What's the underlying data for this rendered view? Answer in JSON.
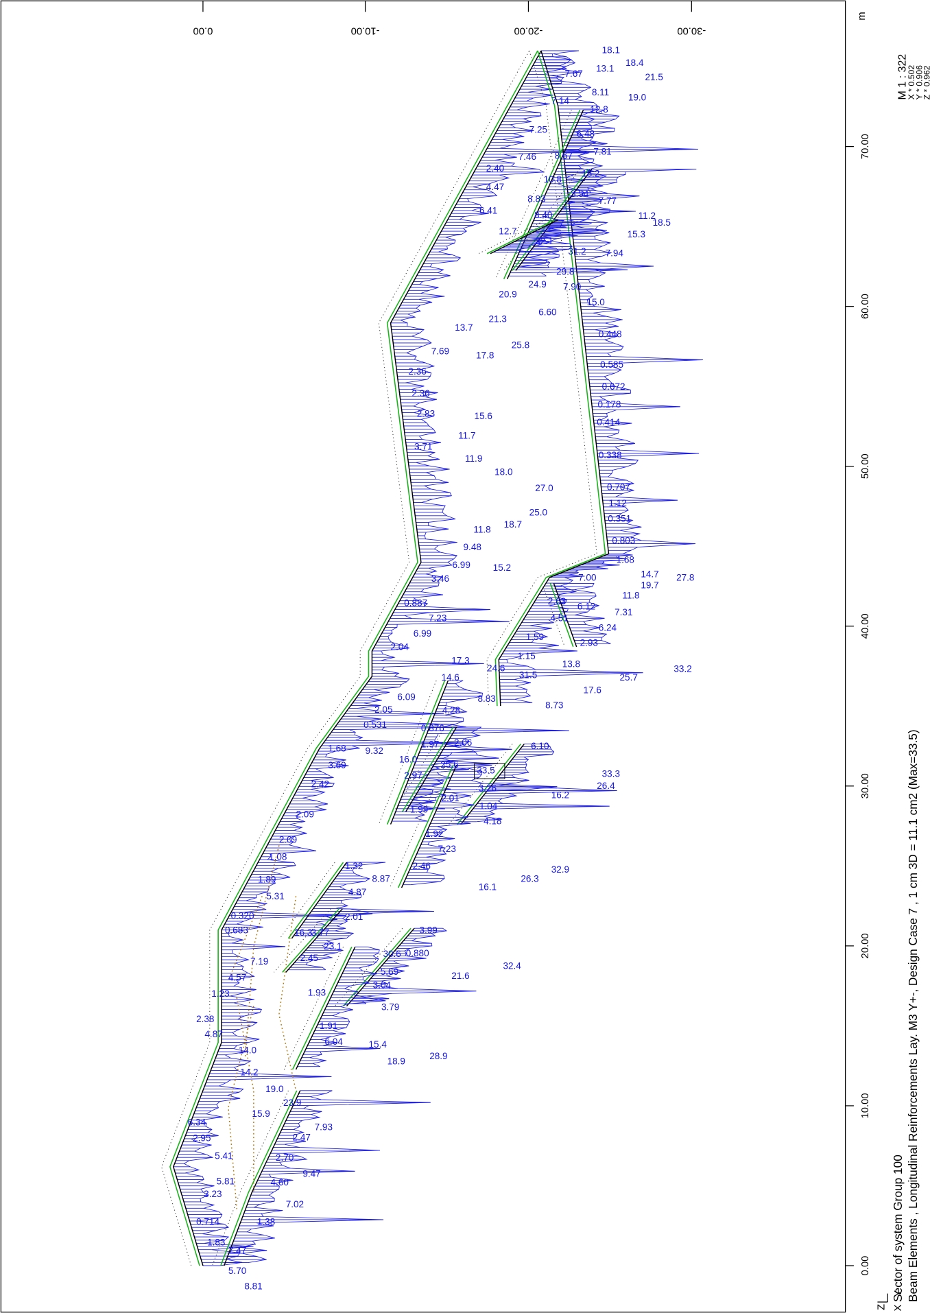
{
  "header": {
    "unit": "m",
    "scale": "M 1 : 322",
    "factors": [
      "X * 0.502",
      "Y * 0.906",
      "Z * 0.962"
    ]
  },
  "axes": {
    "top_ticks": [
      "0.00",
      "-10.00",
      "-20.00",
      "-30.00"
    ],
    "side_ticks": [
      "0.00",
      "10.00",
      "20.00",
      "30.00",
      "40.00",
      "50.00",
      "60.00",
      "70.00"
    ]
  },
  "footer": {
    "title": "Sector of system Group 100",
    "subtitle": "Beam Elements , Longitudinal Reinforcements Lay. M3 Y+-, Design Case 7   , 1 cm 3D = 11.1 cm2 (Max=33.5)"
  },
  "axis_icon": [
    "Z",
    "Y",
    "X"
  ],
  "labels": [
    "18.1",
    "18.4",
    "21.5",
    "7.67",
    "13.1",
    "8.11",
    "19.0",
    "7.14",
    "12.8",
    "7.25",
    "6.48",
    "7.81",
    "7.46",
    "8.67",
    "2.40",
    "18.2",
    "10.8",
    "4.47",
    "3.54",
    "8.83",
    "7.77",
    "6.41",
    "8.40",
    "11.2",
    "18.5",
    "12.7",
    "15.3",
    "22.1",
    "31.2",
    "7.94",
    "29.8",
    "24.9",
    "7.90",
    "20.9",
    "15.0",
    "21.3",
    "6.60",
    "13.7",
    "25.8",
    "7.69",
    "17.8",
    "0.448",
    "2.36",
    "2.36",
    "2.83",
    "15.6",
    "11.7",
    "3.71",
    "11.9",
    "18.0",
    "27.0",
    "25.0",
    "18.7",
    "11.8",
    "9.48",
    "6.99",
    "15.2",
    "3.46",
    "0.585",
    "0.672",
    "0.178",
    "0.414",
    "0.338",
    "0.707",
    "1.12",
    "0.351",
    "0.803",
    "1.68",
    "14.7",
    "27.8",
    "7.00",
    "19.7",
    "11.8",
    "6.12",
    "7.31",
    "2.63",
    "4.51",
    "6.24",
    "2.93",
    "1.59",
    "0.887",
    "7.23",
    "6.99",
    "2.04",
    "1.15",
    "13.8",
    "33.2",
    "17.3",
    "24.6",
    "31.5",
    "25.7",
    "14.6",
    "17.6",
    "6.09",
    "8.83",
    "8.73",
    "2.05",
    "4.28",
    "0.531",
    "0.876",
    "1.97",
    "2.06",
    "9.32",
    "1.68",
    "16.0",
    "6.10",
    "3.69",
    "25.6",
    "33.5",
    "33.3",
    "2.97",
    "2.42",
    "3.26",
    "26.4",
    "16.2",
    "2.01",
    "1.04",
    "1.99",
    "4.18",
    "2.09",
    "1.92",
    "2.09",
    "7.23",
    "1.08",
    "2.46",
    "32.9",
    "1.32",
    "26.3",
    "8.87",
    "1.89",
    "16.1",
    "4.87",
    "5.31",
    "2.01",
    "0.320",
    "3.99",
    "0.683",
    "16.3",
    "3.77",
    "23.1",
    "30.6",
    "0.880",
    "32.4",
    "2.45",
    "7.19",
    "5.69",
    "21.6",
    "4.57",
    "3.04",
    "1.93",
    "1.23",
    "3.79",
    "2.38",
    "1.91",
    "4.87",
    "6.04",
    "15.4",
    "14.0",
    "28.9",
    "18.9",
    "14.2",
    "19.0",
    "23.9",
    "15.9",
    "6.34",
    "7.93",
    "2.47",
    "2.95",
    "5.41",
    "2.70",
    "9.47",
    "5.81",
    "4.60",
    "3.23",
    "7.02",
    "1.38",
    "0.714",
    "1.83",
    "7.47",
    "5.70",
    "8.81"
  ]
}
